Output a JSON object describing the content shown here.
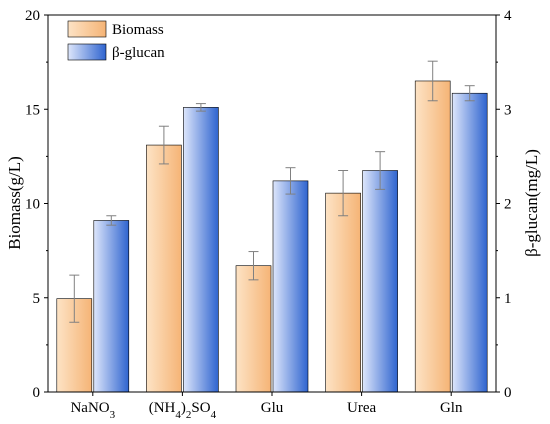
{
  "chart_data": {
    "type": "bar",
    "categories": [
      {
        "main": "NaNO",
        "subs": [
          {
            "t": "3",
            "sub": true
          }
        ]
      },
      {
        "main": "(NH",
        "subs": [
          {
            "t": "4",
            "sub": true
          },
          {
            "t": ")",
            "sub": false
          },
          {
            "t": "2",
            "sub": true
          },
          {
            "t": "SO",
            "sub": false
          },
          {
            "t": "4",
            "sub": true
          }
        ]
      },
      {
        "main": "Glu",
        "subs": []
      },
      {
        "main": "Urea",
        "subs": []
      },
      {
        "main": "Gln",
        "subs": []
      }
    ],
    "series": [
      {
        "name": "Biomass",
        "axis": "left",
        "values": [
          4.95,
          13.1,
          6.7,
          10.55,
          16.5
        ],
        "errors": [
          1.25,
          1.0,
          0.75,
          1.2,
          1.05
        ],
        "colors": [
          "#fde3c5",
          "#f5b476"
        ]
      },
      {
        "name": "β-glucan",
        "axis": "right",
        "values": [
          1.82,
          3.02,
          2.24,
          2.35,
          3.17
        ],
        "errors": [
          0.05,
          0.04,
          0.14,
          0.2,
          0.08
        ],
        "colors": [
          "#dde6fb",
          "#2f64cf"
        ]
      }
    ],
    "ylabel_left": "Biomass(g/L)",
    "ylabel_right": "β-glucan(mg/L)",
    "ylim_left": [
      0,
      20
    ],
    "ylim_right": [
      0,
      4
    ],
    "yticks_left": [
      "0",
      "5",
      "10",
      "15",
      "20"
    ],
    "yticks_right": [
      "0",
      "1",
      "2",
      "3",
      "4"
    ],
    "legend_position": "top-left",
    "grid": false
  }
}
